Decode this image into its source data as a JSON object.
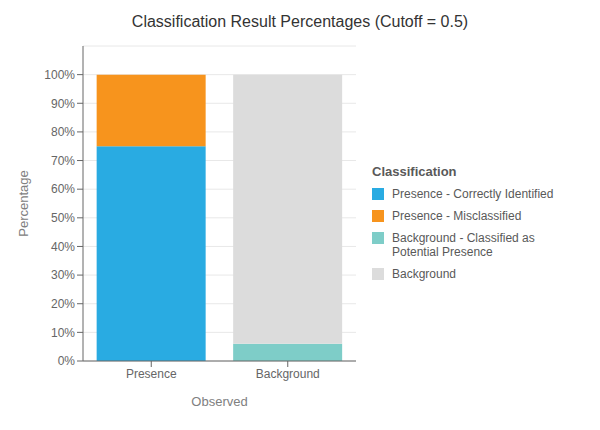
{
  "chart_data": {
    "type": "bar",
    "title": "Classification Result Percentages (Cutoff = 0.5)",
    "xlabel": "Observed",
    "ylabel": "Percentage",
    "categories": [
      "Presence",
      "Background"
    ],
    "series": [
      {
        "name": "Presence - Correctly Identified",
        "color": "#29ABE2",
        "values": [
          75,
          0
        ]
      },
      {
        "name": "Presence - Misclassified",
        "color": "#F7941D",
        "values": [
          25,
          0
        ]
      },
      {
        "name": "Background - Classified as Potential Presence",
        "color": "#7ECDC8",
        "values": [
          0,
          6
        ]
      },
      {
        "name": "Background",
        "color": "#DCDCDC",
        "values": [
          0,
          94
        ]
      }
    ],
    "stacked": true,
    "ylim": [
      0,
      110
    ],
    "yticks": [
      {
        "value": 0,
        "label": "0%"
      },
      {
        "value": 10,
        "label": "10%"
      },
      {
        "value": 20,
        "label": "20%"
      },
      {
        "value": 30,
        "label": "30%"
      },
      {
        "value": 40,
        "label": "40%"
      },
      {
        "value": 50,
        "label": "50%"
      },
      {
        "value": 60,
        "label": "60%"
      },
      {
        "value": 70,
        "label": "70%"
      },
      {
        "value": 80,
        "label": "80%"
      },
      {
        "value": 90,
        "label": "90%"
      },
      {
        "value": 100,
        "label": "100%"
      }
    ],
    "grid": true,
    "legend": "right",
    "legend_title": "Classification"
  }
}
